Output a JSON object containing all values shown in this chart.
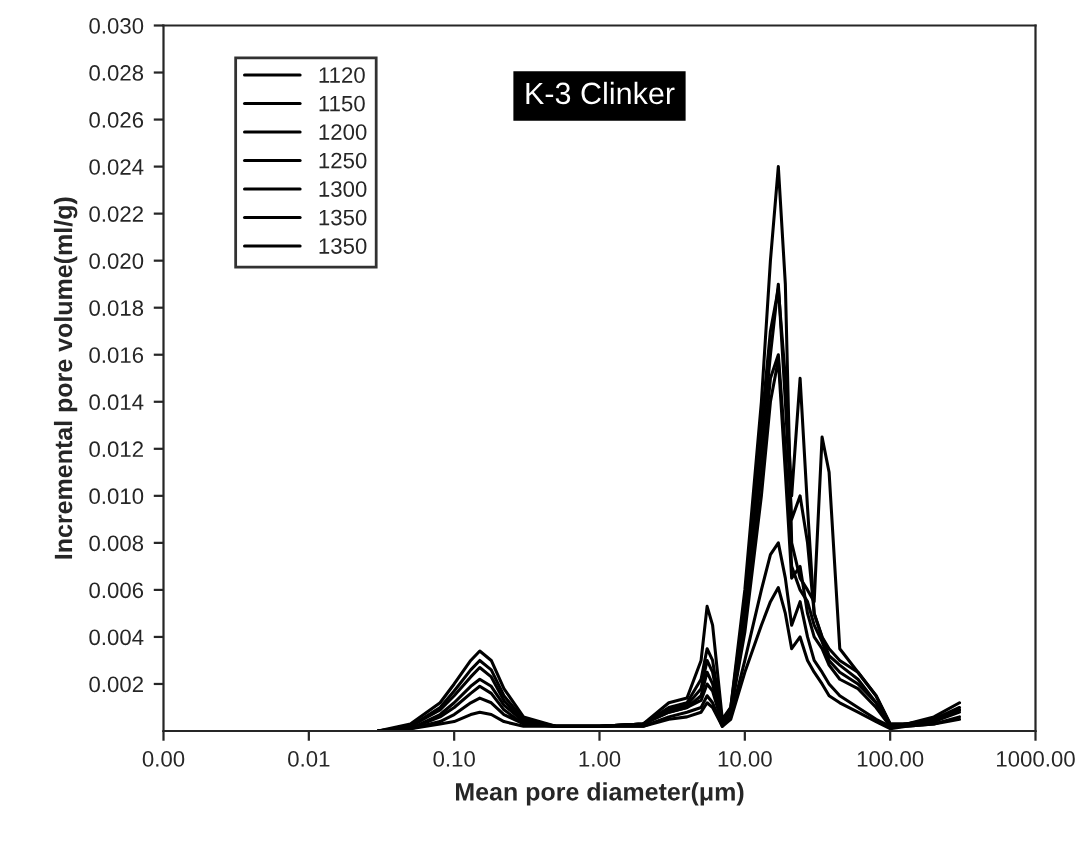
{
  "chart_data": {
    "type": "line",
    "xlabel": "Mean pore diameter(μm)",
    "ylabel": "Incremental pore volume(ml/g)",
    "annotations": [
      "K-3 Clinker"
    ],
    "log": "x",
    "grid": false,
    "legend": "top left",
    "marker": "none",
    "line_style": "solid",
    "xlim": [
      0.001,
      1000
    ],
    "xticks": [
      {
        "value": 0.001,
        "label": "0.00"
      },
      {
        "value": 0.01,
        "label": "0.01"
      },
      {
        "value": 0.1,
        "label": "0.10"
      },
      {
        "value": 1,
        "label": "1.00"
      },
      {
        "value": 10,
        "label": "10.00"
      },
      {
        "value": 100,
        "label": "100.00"
      },
      {
        "value": 1000,
        "label": "1000.00"
      }
    ],
    "ylim": [
      0,
      0.03
    ],
    "yticks": [
      {
        "value": 0.002,
        "label": "0.002"
      },
      {
        "value": 0.004,
        "label": "0.004"
      },
      {
        "value": 0.006,
        "label": "0.006"
      },
      {
        "value": 0.008,
        "label": "0.008"
      },
      {
        "value": 0.01,
        "label": "0.010"
      },
      {
        "value": 0.012,
        "label": "0.012"
      },
      {
        "value": 0.014,
        "label": "0.014"
      },
      {
        "value": 0.016,
        "label": "0.016"
      },
      {
        "value": 0.018,
        "label": "0.018"
      },
      {
        "value": 0.02,
        "label": "0.020"
      },
      {
        "value": 0.022,
        "label": "0.022"
      },
      {
        "value": 0.024,
        "label": "0.024"
      },
      {
        "value": 0.026,
        "label": "0.026"
      },
      {
        "value": 0.028,
        "label": "0.028"
      },
      {
        "value": 0.03,
        "label": "0.030"
      }
    ],
    "x": [
      0.03,
      0.05,
      0.08,
      0.1,
      0.13,
      0.15,
      0.18,
      0.22,
      0.3,
      0.5,
      1,
      2,
      3,
      4,
      5,
      5.5,
      6,
      7,
      8,
      10,
      13,
      15,
      17,
      19,
      21,
      24,
      27,
      30,
      34,
      38,
      45,
      60,
      80,
      100,
      130,
      200,
      300
    ],
    "series": [
      {
        "name": "1120",
        "color": "#000000",
        "values": [
          0,
          0.0003,
          0.0012,
          0.002,
          0.003,
          0.0034,
          0.003,
          0.0018,
          0.0006,
          0.0002,
          0.0002,
          0.0003,
          0.0012,
          0.0014,
          0.003,
          0.0053,
          0.0045,
          0.0005,
          0.001,
          0.006,
          0.014,
          0.02,
          0.024,
          0.019,
          0.008,
          0.0065,
          0.006,
          0.0055,
          0.0125,
          0.011,
          0.0035,
          0.0025,
          0.0015,
          0.0003,
          0.0003,
          0.0006,
          0.0012
        ]
      },
      {
        "name": "1150",
        "color": "#000000",
        "values": [
          0,
          0.0002,
          0.001,
          0.0017,
          0.0026,
          0.003,
          0.0026,
          0.0015,
          0.0005,
          0.0002,
          0.0002,
          0.0003,
          0.001,
          0.0012,
          0.0022,
          0.0035,
          0.003,
          0.0004,
          0.001,
          0.0055,
          0.013,
          0.017,
          0.0188,
          0.015,
          0.01,
          0.015,
          0.0095,
          0.005,
          0.004,
          0.0035,
          0.003,
          0.0025,
          0.0015,
          0.0003,
          0.0003,
          0.0005,
          0.001
        ]
      },
      {
        "name": "1200",
        "color": "#000000",
        "values": [
          0,
          0.0002,
          0.0009,
          0.0015,
          0.0023,
          0.0027,
          0.0023,
          0.0013,
          0.0004,
          0.0002,
          0.0002,
          0.0003,
          0.0009,
          0.0011,
          0.0018,
          0.003,
          0.0025,
          0.0004,
          0.0009,
          0.005,
          0.012,
          0.016,
          0.019,
          0.014,
          0.009,
          0.01,
          0.008,
          0.005,
          0.004,
          0.0032,
          0.0028,
          0.0022,
          0.0012,
          0.0002,
          0.0003,
          0.0005,
          0.0009
        ]
      },
      {
        "name": "1250",
        "color": "#000000",
        "values": [
          0,
          0.0001,
          0.0007,
          0.0012,
          0.0019,
          0.0022,
          0.0019,
          0.0011,
          0.0004,
          0.0002,
          0.0002,
          0.0003,
          0.0008,
          0.001,
          0.0015,
          0.0025,
          0.002,
          0.0003,
          0.0008,
          0.0045,
          0.011,
          0.015,
          0.016,
          0.012,
          0.007,
          0.006,
          0.0055,
          0.0045,
          0.0038,
          0.003,
          0.0025,
          0.002,
          0.0012,
          0.0002,
          0.0003,
          0.0004,
          0.0009
        ]
      },
      {
        "name": "1300",
        "color": "#000000",
        "values": [
          0,
          0.0001,
          0.0006,
          0.001,
          0.0016,
          0.0019,
          0.0016,
          0.0009,
          0.0003,
          0.0002,
          0.0002,
          0.0003,
          0.0008,
          0.001,
          0.0013,
          0.002,
          0.0017,
          0.0003,
          0.0008,
          0.0042,
          0.01,
          0.014,
          0.0158,
          0.011,
          0.0065,
          0.007,
          0.005,
          0.004,
          0.0035,
          0.0028,
          0.0022,
          0.0018,
          0.001,
          0.0002,
          0.0003,
          0.0004,
          0.0008
        ]
      },
      {
        "name": "1350",
        "color": "#000000",
        "values": [
          0,
          0.0001,
          0.0004,
          0.0007,
          0.0012,
          0.0014,
          0.0012,
          0.0007,
          0.0003,
          0.0002,
          0.0002,
          0.0002,
          0.0006,
          0.0008,
          0.001,
          0.0015,
          0.0012,
          0.0002,
          0.0006,
          0.003,
          0.006,
          0.0075,
          0.008,
          0.0065,
          0.0045,
          0.0055,
          0.004,
          0.003,
          0.0025,
          0.002,
          0.0015,
          0.001,
          0.0005,
          0.0002,
          0.0002,
          0.0003,
          0.0006
        ]
      },
      {
        "name": "1350",
        "color": "#000000",
        "values": [
          0,
          0.0001,
          0.0003,
          0.0004,
          0.0007,
          0.0008,
          0.0007,
          0.0004,
          0.0002,
          0.0002,
          0.0002,
          0.0002,
          0.0005,
          0.0006,
          0.0008,
          0.0012,
          0.001,
          0.0002,
          0.0005,
          0.0025,
          0.0045,
          0.0055,
          0.0061,
          0.005,
          0.0035,
          0.004,
          0.003,
          0.0025,
          0.002,
          0.0015,
          0.0012,
          0.0008,
          0.0004,
          0.0001,
          0.0002,
          0.0003,
          0.0005
        ]
      }
    ]
  }
}
